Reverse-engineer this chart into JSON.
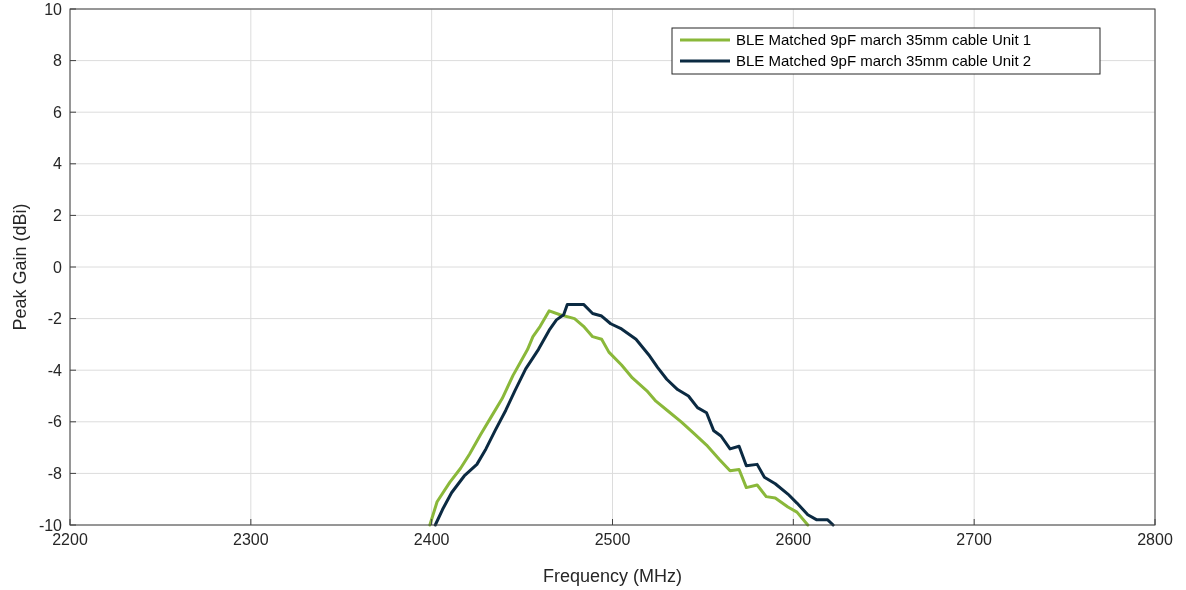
{
  "chart_data": {
    "type": "line",
    "xlabel": "Frequency (MHz)",
    "ylabel": "Peak Gain (dBi)",
    "xlim": [
      2200,
      2800
    ],
    "xticks": [
      2200,
      2300,
      2400,
      2500,
      2600,
      2700,
      2800
    ],
    "ylim": [
      -10,
      10
    ],
    "yticks": [
      -10,
      -8,
      -6,
      -4,
      -2,
      0,
      2,
      4,
      6,
      8,
      10
    ],
    "grid": true,
    "legend": "top right",
    "line_style": "solid",
    "marker": "none",
    "series": [
      {
        "name": "BLE Matched 9pF march 35mm cable Unit 1",
        "color": "#8ab83a",
        "x": [
          2399,
          2403,
          2410,
          2416,
          2421,
          2427,
          2433,
          2439,
          2445,
          2449,
          2453,
          2456,
          2460,
          2465,
          2471,
          2479,
          2484,
          2489,
          2494,
          2498,
          2505,
          2511,
          2519,
          2524,
          2531,
          2538,
          2545,
          2552,
          2559,
          2565,
          2570,
          2574,
          2580,
          2585,
          2590,
          2597,
          2602,
          2608
        ],
        "values": [
          -10,
          -9.1,
          -8.35,
          -7.8,
          -7.25,
          -6.5,
          -5.8,
          -5.1,
          -4.2,
          -3.7,
          -3.2,
          -2.7,
          -2.3,
          -1.7,
          -1.85,
          -2,
          -2.3,
          -2.7,
          -2.8,
          -3.3,
          -3.8,
          -4.3,
          -4.8,
          -5.2,
          -5.6,
          -6,
          -6.45,
          -6.9,
          -7.45,
          -7.9,
          -7.85,
          -8.55,
          -8.45,
          -8.9,
          -8.95,
          -9.3,
          -9.5,
          -10
        ]
      },
      {
        "name": "BLE Matched 9pF march 35mm cable Unit 2",
        "color": "#0b2a42",
        "x": [
          2402,
          2406,
          2411,
          2418,
          2425,
          2430,
          2435,
          2441,
          2446,
          2452,
          2459,
          2465,
          2469,
          2473,
          2475,
          2484,
          2489,
          2494,
          2499,
          2505,
          2513,
          2520,
          2525,
          2530,
          2536,
          2542,
          2547,
          2552,
          2556,
          2560,
          2565,
          2570,
          2574,
          2580,
          2584,
          2590,
          2597,
          2602,
          2608,
          2613,
          2619,
          2622
        ],
        "values": [
          -10,
          -9.4,
          -8.75,
          -8.1,
          -7.65,
          -7.05,
          -6.35,
          -5.55,
          -4.8,
          -3.95,
          -3.2,
          -2.45,
          -2.05,
          -1.85,
          -1.45,
          -1.45,
          -1.8,
          -1.9,
          -2.2,
          -2.4,
          -2.8,
          -3.4,
          -3.9,
          -4.35,
          -4.75,
          -5,
          -5.45,
          -5.65,
          -6.35,
          -6.55,
          -7.05,
          -6.95,
          -7.7,
          -7.65,
          -8.15,
          -8.4,
          -8.8,
          -9.15,
          -9.6,
          -9.8,
          -9.8,
          -10
        ]
      }
    ]
  }
}
